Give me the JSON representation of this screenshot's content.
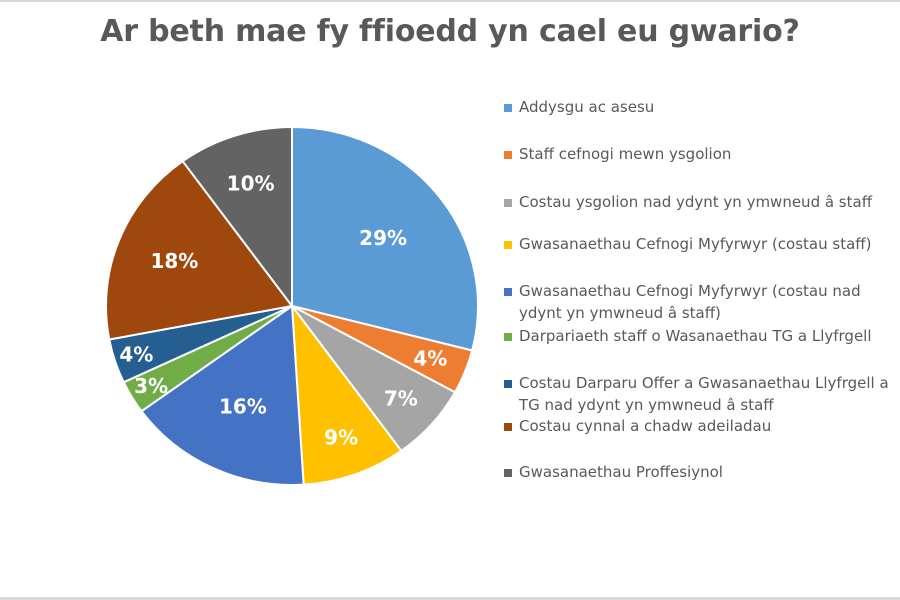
{
  "chart_data": {
    "type": "pie",
    "title": "Ar beth mae fy ffioedd yn cael eu gwario?",
    "start_angle_deg": 0,
    "direction": "clockwise",
    "legend_position": "right",
    "categories": [
      "Addysgu ac asesu",
      "Staff cefnogi mewn ysgolion",
      "Costau ysgolion nad ydynt yn ymwneud â staff",
      "Gwasanaethau Cefnogi Myfyrwyr (costau staff)",
      "Gwasanaethau Cefnogi Myfyrwyr (costau nad ydynt yn ymwneud â staff)",
      "Darpariaeth staff o Wasanaethau TG a Llyfrgell",
      "Costau Darparu Offer a Gwasanaethau Llyfrgell a TG nad ydynt yn ymwneud â staff",
      "Costau cynnal a chadw adeiladau",
      "Gwasanaethau Proffesiynol"
    ],
    "values": [
      29,
      4,
      7,
      9,
      16,
      3,
      4,
      18,
      10
    ],
    "labels": [
      "29%",
      "4%",
      "7%",
      "9%",
      "16%",
      "3%",
      "4%",
      "18%",
      "10%"
    ],
    "colors": [
      "#5B9BD5",
      "#ED7D31",
      "#A5A5A5",
      "#FFC000",
      "#4472C4",
      "#70AD47",
      "#255E91",
      "#9E480E",
      "#636363"
    ],
    "unit": "%"
  },
  "legend": {
    "items": [
      {
        "lines": [
          "Addysgu ac asesu"
        ],
        "color": "#5B9BD5"
      },
      {
        "lines": [
          "Staff cefnogi mewn ysgolion"
        ],
        "color": "#ED7D31"
      },
      {
        "lines": [
          "Costau ysgolion nad ydynt yn ymwneud â staff"
        ],
        "color": "#A5A5A5"
      },
      {
        "lines": [
          "Gwasanaethau Cefnogi Myfyrwyr (costau staff)"
        ],
        "color": "#FFC000"
      },
      {
        "lines": [
          "Gwasanaethau Cefnogi Myfyrwyr (costau nad",
          "ydynt yn ymwneud â staff)"
        ],
        "color": "#4472C4"
      },
      {
        "lines": [
          "Darpariaeth staff o Wasanaethau TG a Llyfrgell"
        ],
        "color": "#70AD47"
      },
      {
        "lines": [
          "Costau Darparu Offer a Gwasanaethau Llyfrgell a",
          "TG nad ydynt yn ymwneud â staff"
        ],
        "color": "#255E91"
      },
      {
        "lines": [
          "Costau cynnal a chadw adeiladau"
        ],
        "color": "#9E480E"
      },
      {
        "lines": [
          "Gwasanaethau Proffesiynol"
        ],
        "color": "#636363"
      }
    ]
  }
}
